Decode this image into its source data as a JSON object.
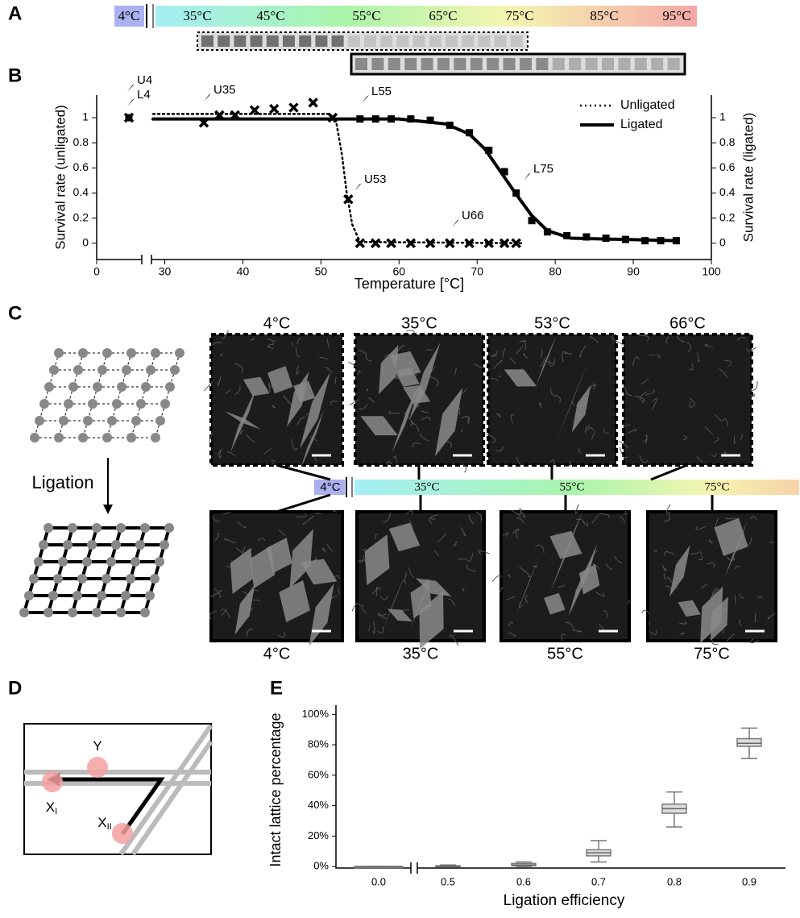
{
  "panel_labels": [
    "A",
    "B",
    "C",
    "D",
    "E"
  ],
  "panel_a": {
    "temperature_labels": [
      "4°C",
      "35°C",
      "45°C",
      "55°C",
      "65°C",
      "75°C",
      "85°C",
      "95°C"
    ]
  },
  "panel_c": {
    "arrow_label": "Ligation",
    "unligated_titles": [
      "4°C",
      "35°C",
      "53°C",
      "66°C"
    ],
    "ligated_titles": [
      "4°C",
      "35°C",
      "55°C",
      "75°C"
    ],
    "gradient_labels": [
      "4°C",
      "35°C",
      "55°C",
      "75°C"
    ]
  },
  "panel_d": {
    "labels": [
      {
        "text": "Y"
      },
      {
        "text": "X",
        "subscript": "I"
      },
      {
        "text": "X",
        "subscript": "II"
      }
    ]
  },
  "chart_data": [
    {
      "type": "line",
      "xlabel": "Temperature [°C]",
      "ylabel": "Survival rate (unligated)",
      "y2label": "Survival rate (ligated)",
      "xlim": [
        0,
        100
      ],
      "xbreak": [
        6,
        28.5
      ],
      "xticks": [
        0,
        30,
        40,
        50,
        60,
        70,
        80,
        90,
        100
      ],
      "ylim": [
        -0.13,
        1.18
      ],
      "yticks": [
        0,
        0.2,
        0.4,
        0.6,
        0.8,
        1
      ],
      "y2lim": [
        -0.13,
        1.18
      ],
      "y2ticks": [
        0,
        0.2,
        0.4,
        0.6,
        0.8,
        1
      ],
      "legend": "upper right",
      "annotations": [
        "U4",
        "L4",
        "U35",
        "L55",
        "U53",
        "U66",
        "L75"
      ],
      "series": [
        {
          "name": "Unligated",
          "style": "dotted",
          "marker": "x",
          "color": "#000000",
          "x": [
            4,
            35,
            37,
            39,
            41.5,
            44,
            46.5,
            49,
            51.5,
            53.5,
            55,
            57,
            59,
            61.5,
            64,
            66.5,
            69,
            71.5,
            73.5,
            75
          ],
          "values": [
            1,
            0.96,
            1.02,
            1.02,
            1.06,
            1.07,
            1.08,
            1.12,
            1,
            0.35,
            0,
            0,
            0,
            0,
            0,
            0,
            0,
            0,
            0,
            0
          ],
          "fit_x": [
            28.5,
            51,
            52,
            52.7,
            53.3,
            54,
            55,
            76
          ],
          "fit_values": [
            1.03,
            1.03,
            0.95,
            0.7,
            0.4,
            0.15,
            0.01,
            0
          ]
        },
        {
          "name": "Ligated",
          "style": "solid",
          "marker": "square",
          "color": "#000000",
          "axis": "y2",
          "x": [
            4,
            55,
            57,
            59,
            61.5,
            64,
            66.5,
            69,
            71.5,
            73.5,
            75,
            77,
            79,
            81.5,
            84,
            86.5,
            89,
            91.5,
            93.5,
            95.5
          ],
          "values": [
            1,
            0.99,
            0.99,
            0.99,
            0.99,
            0.98,
            0.94,
            0.88,
            0.74,
            0.57,
            0.4,
            0.18,
            0.09,
            0.06,
            0.05,
            0.04,
            0.03,
            0.02,
            0.02,
            0.02
          ],
          "fit_x": [
            28.5,
            60,
            66,
            69,
            71,
            73,
            74,
            75,
            77,
            79,
            82,
            95.5
          ],
          "fit_values": [
            0.99,
            0.99,
            0.95,
            0.87,
            0.75,
            0.57,
            0.48,
            0.39,
            0.22,
            0.1,
            0.04,
            0.02
          ]
        }
      ]
    },
    {
      "type": "box",
      "xlabel": "Ligation efficiency",
      "ylabel": "Intact lattice percentage",
      "categories": [
        "0.0",
        "0.5",
        "0.6",
        "0.7",
        "0.8",
        "0.9"
      ],
      "boxes": [
        {
          "min": 0,
          "q1": 0,
          "median": 0,
          "q3": 0,
          "max": 0
        },
        {
          "min": 0,
          "q1": 0,
          "median": 0.3,
          "q3": 0.5,
          "max": 1
        },
        {
          "min": 0,
          "q1": 0.5,
          "median": 1,
          "q3": 2,
          "max": 3
        },
        {
          "min": 3,
          "q1": 7,
          "median": 9,
          "q3": 11,
          "max": 17
        },
        {
          "min": 26,
          "q1": 35,
          "median": 38,
          "q3": 41,
          "max": 49
        },
        {
          "min": 71,
          "q1": 79,
          "median": 81,
          "q3": 84,
          "max": 91
        }
      ],
      "color": "#dddddd",
      "ylim": [
        -1,
        106
      ],
      "yticks": [
        {
          "value": 0,
          "label": "0%"
        },
        {
          "value": 20,
          "label": "20%"
        },
        {
          "value": 40,
          "label": "40%"
        },
        {
          "value": 60,
          "label": "60%"
        },
        {
          "value": 80,
          "label": "80%"
        },
        {
          "value": 100,
          "label": "100%"
        }
      ]
    }
  ]
}
